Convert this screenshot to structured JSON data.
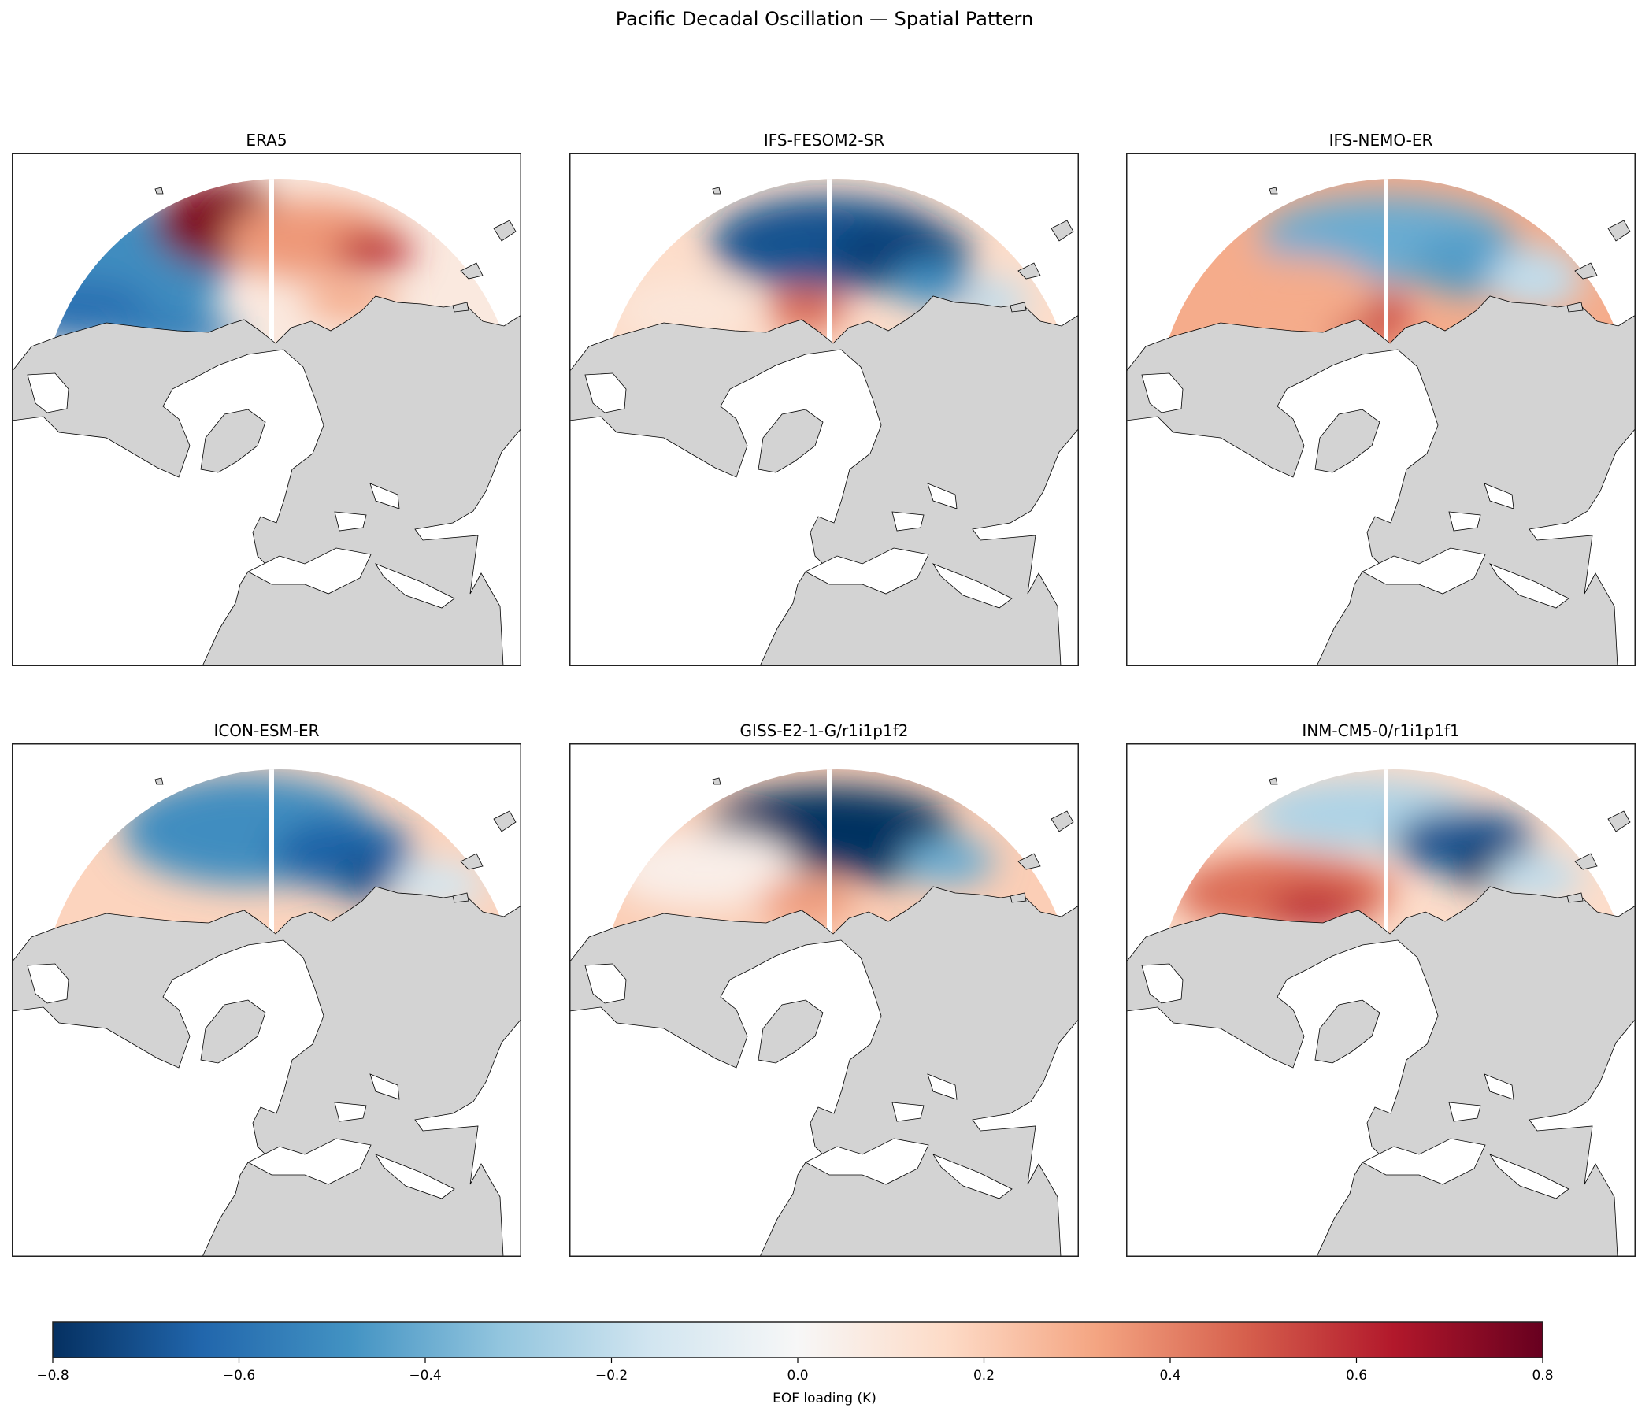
{
  "title": "Pacific Decadal Oscillation — Spatial Pattern",
  "panels": [
    {
      "title": "ERA5"
    },
    {
      "title": "IFS-FESOM2-SR"
    },
    {
      "title": "IFS-NEMO-ER"
    },
    {
      "title": "ICON-ESM-ER"
    },
    {
      "title": "GISS-E2-1-G/r1i1p1f2"
    },
    {
      "title": "INM-CM5-0/r1i1p1f1"
    }
  ],
  "chart_data": {
    "type": "heatmap",
    "projection": "north-polar",
    "colormap": "RdBu_r",
    "land_color": "#d3d3d3",
    "colorbar": {
      "label": "EOF loading (K)",
      "vmin": -0.8,
      "vmax": 0.8,
      "ticks": [
        "−0.8",
        "−0.6",
        "−0.4",
        "−0.2",
        "0.0",
        "0.2",
        "0.4",
        "0.6",
        "0.8"
      ],
      "orientation": "horizontal",
      "placement": "bottom"
    }
  }
}
